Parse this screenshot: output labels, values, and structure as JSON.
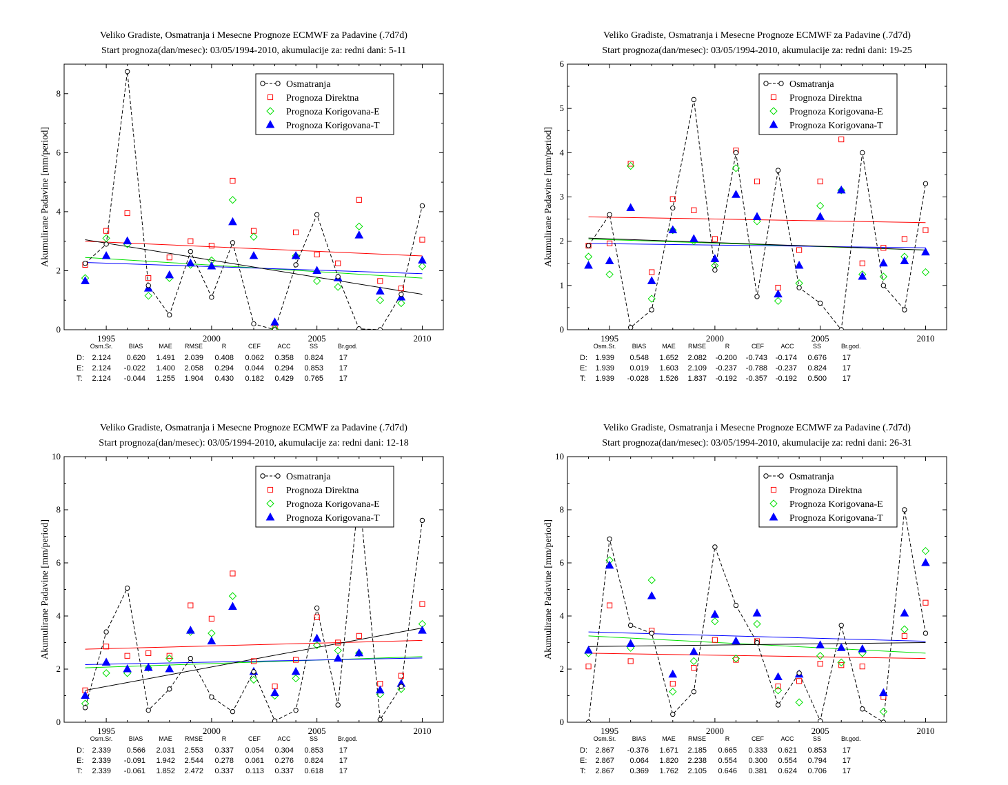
{
  "colors": {
    "obs": "#000000",
    "direct": "#ff0000",
    "corrE": "#00e000",
    "corrT": "#0000ff"
  },
  "stat_headers": [
    "Osm.Sr.",
    "BIAS",
    "MAE",
    "RMSE",
    "R",
    "CEF",
    "ACC",
    "SS",
    "Br.god."
  ],
  "chart_data": [
    {
      "type": "scatter",
      "title": "Veliko Gradiste, Osmatranja i Mesecne Prognoze ECMWF za Padavine (.7d7d)",
      "subtitle": "Start prognoza(dan/mesec): 03/05/1994-2010, akumulacije za: redni dani: 5-11",
      "ylabel": "Akumulirane Padavine [mm/period]",
      "xlim": [
        1993,
        2011
      ],
      "ylim": [
        0,
        9
      ],
      "xticks": [
        1995,
        2000,
        2005,
        2010
      ],
      "yticks": [
        0,
        2,
        4,
        6,
        8
      ],
      "x": [
        1994,
        1995,
        1996,
        1997,
        1998,
        1999,
        2000,
        2001,
        2002,
        2003,
        2004,
        2005,
        2006,
        2007,
        2008,
        2009,
        2010
      ],
      "legend": {
        "position": "top-right",
        "entries": [
          "Osmatranja",
          "Prognoza Direktna",
          "Prognoza Korigovana-E",
          "Prognoza Korigovana-T"
        ]
      },
      "series": [
        {
          "name": "Osmatranja",
          "values": [
            2.25,
            2.9,
            8.75,
            1.5,
            0.5,
            2.65,
            1.1,
            2.95,
            0.2,
            0.0,
            2.2,
            3.9,
            1.8,
            0.03,
            0.0,
            1.2,
            4.2
          ]
        },
        {
          "name": "Prognoza Direktna",
          "values": [
            2.2,
            3.35,
            3.95,
            1.75,
            2.45,
            3.0,
            2.85,
            5.05,
            3.35,
            0.05,
            3.3,
            2.55,
            2.25,
            4.4,
            1.65,
            1.4,
            3.05
          ]
        },
        {
          "name": "Prognoza Korigovana-E",
          "values": [
            1.75,
            3.1,
            2.9,
            1.15,
            1.75,
            2.2,
            2.35,
            4.4,
            3.15,
            0.02,
            2.5,
            1.65,
            1.45,
            3.5,
            1.0,
            0.9,
            2.15
          ]
        },
        {
          "name": "Prognoza Korigovana-T",
          "values": [
            1.65,
            2.5,
            3.0,
            1.4,
            1.85,
            2.25,
            2.15,
            3.65,
            2.5,
            0.25,
            2.5,
            2.0,
            1.75,
            3.2,
            1.3,
            1.1,
            2.35
          ]
        }
      ],
      "trends": [
        {
          "series": "Osmatranja",
          "start": 3.05,
          "end": 1.2
        },
        {
          "series": "Prognoza Direktna",
          "start": 3.0,
          "end": 2.5
        },
        {
          "series": "Prognoza Korigovana-E",
          "start": 2.45,
          "end": 1.75
        },
        {
          "series": "Prognoza Korigovana-T",
          "start": 2.28,
          "end": 1.9
        }
      ],
      "stats": [
        {
          "label": "D:",
          "values": [
            "2.124",
            "0.620",
            "1.491",
            "2.039",
            "0.408",
            "0.062",
            "0.358",
            "0.824",
            "17"
          ]
        },
        {
          "label": "E:",
          "values": [
            "2.124",
            "-0.022",
            "1.400",
            "2.058",
            "0.294",
            "0.044",
            "0.294",
            "0.853",
            "17"
          ]
        },
        {
          "label": "T:",
          "values": [
            "2.124",
            "-0.044",
            "1.255",
            "1.904",
            "0.430",
            "0.182",
            "0.429",
            "0.765",
            "17"
          ]
        }
      ]
    },
    {
      "type": "scatter",
      "title": "Veliko Gradiste, Osmatranja i Mesecne Prognoze ECMWF za Padavine (.7d7d)",
      "subtitle": "Start prognoza(dan/mesec): 03/05/1994-2010, akumulacije za: redni dani: 19-25",
      "ylabel": "Akumulirane Padavine [mm/period]",
      "xlim": [
        1993,
        2011
      ],
      "ylim": [
        0,
        6
      ],
      "xticks": [
        1995,
        2000,
        2005,
        2010
      ],
      "yticks": [
        0,
        1,
        2,
        3,
        4,
        5,
        6
      ],
      "x": [
        1994,
        1995,
        1996,
        1997,
        1998,
        1999,
        2000,
        2001,
        2002,
        2003,
        2004,
        2005,
        2006,
        2007,
        2008,
        2009,
        2010
      ],
      "legend": {
        "position": "top-right",
        "entries": [
          "Osmatranja",
          "Prognoza Direktna",
          "Prognoza Korigovana-E",
          "Prognoza Korigovana-T"
        ]
      },
      "series": [
        {
          "name": "Osmatranja",
          "values": [
            1.9,
            2.6,
            0.05,
            0.45,
            2.75,
            5.2,
            1.35,
            4.0,
            0.75,
            3.6,
            0.95,
            0.6,
            0.0,
            4.0,
            1.0,
            0.45,
            3.3
          ]
        },
        {
          "name": "Prognoza Direktna",
          "values": [
            1.9,
            1.95,
            3.75,
            1.3,
            2.95,
            2.7,
            2.05,
            4.05,
            3.35,
            0.95,
            1.8,
            3.35,
            4.3,
            1.5,
            1.85,
            2.05,
            2.25
          ]
        },
        {
          "name": "Prognoza Korigovana-E",
          "values": [
            1.65,
            1.25,
            3.7,
            0.7,
            2.25,
            2.0,
            1.45,
            3.65,
            2.45,
            0.65,
            1.05,
            2.8,
            3.15,
            1.25,
            1.2,
            1.65,
            1.3
          ]
        },
        {
          "name": "Prognoza Korigovana-T",
          "values": [
            1.45,
            1.55,
            2.75,
            1.1,
            2.25,
            2.05,
            1.6,
            3.05,
            2.55,
            0.8,
            1.45,
            2.55,
            3.15,
            1.2,
            1.5,
            1.55,
            1.75
          ]
        }
      ],
      "trends": [
        {
          "series": "Osmatranja",
          "start": 2.07,
          "end": 1.8
        },
        {
          "series": "Prognoza Direktna",
          "start": 2.55,
          "end": 2.42
        },
        {
          "series": "Prognoza Korigovana-E",
          "start": 2.05,
          "end": 1.8
        },
        {
          "series": "Prognoza Korigovana-T",
          "start": 1.95,
          "end": 1.85
        }
      ],
      "stats": [
        {
          "label": "D:",
          "values": [
            "1.939",
            "0.548",
            "1.652",
            "2.082",
            "-0.200",
            "-0.743",
            "-0.174",
            "0.676",
            "17"
          ]
        },
        {
          "label": "E:",
          "values": [
            "1.939",
            "0.019",
            "1.603",
            "2.109",
            "-0.237",
            "-0.788",
            "-0.237",
            "0.824",
            "17"
          ]
        },
        {
          "label": "T:",
          "values": [
            "1.939",
            "-0.028",
            "1.526",
            "1.837",
            "-0.192",
            "-0.357",
            "-0.192",
            "0.500",
            "17"
          ]
        }
      ]
    },
    {
      "type": "scatter",
      "title": "Veliko Gradiste, Osmatranja i Mesecne Prognoze ECMWF za Padavine (.7d7d)",
      "subtitle": "Start prognoza(dan/mesec): 03/05/1994-2010, akumulacije za: redni dani: 12-18",
      "ylabel": "Akumulirane Padavine [mm/period]",
      "xlim": [
        1993,
        2011
      ],
      "ylim": [
        0,
        10
      ],
      "xticks": [
        1995,
        2000,
        2005,
        2010
      ],
      "yticks": [
        0,
        2,
        4,
        6,
        8,
        10
      ],
      "x": [
        1994,
        1995,
        1996,
        1997,
        1998,
        1999,
        2000,
        2001,
        2002,
        2003,
        2004,
        2005,
        2006,
        2007,
        2008,
        2009,
        2010
      ],
      "legend": {
        "position": "top-right",
        "entries": [
          "Osmatranja",
          "Prognoza Direktna",
          "Prognoza Korigovana-E",
          "Prognoza Korigovana-T"
        ]
      },
      "series": [
        {
          "name": "Osmatranja",
          "values": [
            0.55,
            3.4,
            5.05,
            0.45,
            1.25,
            2.4,
            0.95,
            0.4,
            1.9,
            0.05,
            0.45,
            4.3,
            0.65,
            8.7,
            0.1,
            1.35,
            7.6
          ]
        },
        {
          "name": "Prognoza Direktna",
          "values": [
            1.2,
            2.85,
            2.5,
            2.6,
            2.5,
            4.4,
            3.9,
            5.6,
            2.3,
            1.35,
            2.35,
            3.95,
            3.0,
            3.25,
            1.45,
            1.75,
            4.45
          ]
        },
        {
          "name": "Prognoza Korigovana-E",
          "values": [
            0.7,
            1.85,
            1.85,
            2.05,
            2.4,
            3.4,
            3.35,
            4.75,
            1.6,
            1.0,
            1.65,
            2.9,
            2.7,
            2.6,
            1.05,
            1.25,
            3.7
          ]
        },
        {
          "name": "Prognoza Korigovana-T",
          "values": [
            1.0,
            2.25,
            2.0,
            2.05,
            2.0,
            3.45,
            3.05,
            4.35,
            1.9,
            1.1,
            1.9,
            3.15,
            2.4,
            2.6,
            1.2,
            1.45,
            3.45
          ]
        }
      ],
      "trends": [
        {
          "series": "Osmatranja",
          "start": 1.2,
          "end": 3.55
        },
        {
          "series": "Prognoza Direktna",
          "start": 2.75,
          "end": 3.08
        },
        {
          "series": "Prognoza Korigovana-E",
          "start": 2.05,
          "end": 2.47
        },
        {
          "series": "Prognoza Korigovana-T",
          "start": 2.17,
          "end": 2.42
        }
      ],
      "stats": [
        {
          "label": "D:",
          "values": [
            "2.339",
            "0.566",
            "2.031",
            "2.553",
            "0.337",
            "0.054",
            "0.304",
            "0.853",
            "17"
          ]
        },
        {
          "label": "E:",
          "values": [
            "2.339",
            "-0.091",
            "1.942",
            "2.544",
            "0.278",
            "0.061",
            "0.276",
            "0.824",
            "17"
          ]
        },
        {
          "label": "T:",
          "values": [
            "2.339",
            "-0.061",
            "1.852",
            "2.472",
            "0.337",
            "0.113",
            "0.337",
            "0.618",
            "17"
          ]
        }
      ]
    },
    {
      "type": "scatter",
      "title": "Veliko Gradiste, Osmatranja i Mesecne Prognoze ECMWF za Padavine (.7d7d)",
      "subtitle": "Start prognoza(dan/mesec): 03/05/1994-2010, akumulacije za: redni dani: 26-31",
      "ylabel": "Akumulirane Padavine [mm/period]",
      "xlim": [
        1993,
        2011
      ],
      "ylim": [
        0,
        10
      ],
      "xticks": [
        1995,
        2000,
        2005,
        2010
      ],
      "yticks": [
        0,
        2,
        4,
        6,
        8,
        10
      ],
      "x": [
        1994,
        1995,
        1996,
        1997,
        1998,
        1999,
        2000,
        2001,
        2002,
        2003,
        2004,
        2005,
        2006,
        2007,
        2008,
        2009,
        2010
      ],
      "legend": {
        "position": "top-right",
        "entries": [
          "Osmatranja",
          "Prognoza Direktna",
          "Prognoza Korigovana-E",
          "Prognoza Korigovana-T"
        ]
      },
      "series": [
        {
          "name": "Osmatranja",
          "values": [
            0.0,
            6.9,
            3.65,
            3.35,
            0.3,
            1.15,
            6.6,
            4.4,
            3.0,
            0.65,
            1.85,
            0.05,
            3.65,
            0.5,
            0.0,
            8.0,
            3.35
          ]
        },
        {
          "name": "Prognoza Direktna",
          "values": [
            2.1,
            4.4,
            2.3,
            3.45,
            1.45,
            2.05,
            3.1,
            2.35,
            3.05,
            1.35,
            1.55,
            2.2,
            2.15,
            2.1,
            0.95,
            3.25,
            4.5
          ]
        },
        {
          "name": "Prognoza Korigovana-E",
          "values": [
            2.6,
            6.1,
            2.8,
            5.35,
            1.15,
            2.3,
            3.8,
            2.4,
            3.7,
            1.2,
            0.75,
            2.5,
            2.25,
            2.6,
            0.4,
            3.5,
            6.45
          ]
        },
        {
          "name": "Prognoza Korigovana-T",
          "values": [
            2.7,
            5.9,
            2.95,
            4.75,
            1.8,
            2.65,
            4.05,
            3.05,
            4.1,
            1.7,
            1.8,
            2.9,
            2.8,
            2.75,
            1.1,
            4.1,
            6.0
          ]
        }
      ],
      "trends": [
        {
          "series": "Osmatranja",
          "start": 2.85,
          "end": 3.0
        },
        {
          "series": "Prognoza Direktna",
          "start": 2.6,
          "end": 2.4
        },
        {
          "series": "Prognoza Korigovana-E",
          "start": 3.25,
          "end": 2.6
        },
        {
          "series": "Prognoza Korigovana-T",
          "start": 3.4,
          "end": 3.05
        }
      ],
      "stats": [
        {
          "label": "D:",
          "values": [
            "2.867",
            "-0.376",
            "1.671",
            "2.185",
            "0.665",
            "0.333",
            "0.621",
            "0.853",
            "17"
          ]
        },
        {
          "label": "E:",
          "values": [
            "2.867",
            "0.064",
            "1.820",
            "2.238",
            "0.554",
            "0.300",
            "0.554",
            "0.794",
            "17"
          ]
        },
        {
          "label": "T:",
          "values": [
            "2.867",
            "0.369",
            "1.762",
            "2.105",
            "0.646",
            "0.381",
            "0.624",
            "0.706",
            "17"
          ]
        }
      ]
    }
  ]
}
